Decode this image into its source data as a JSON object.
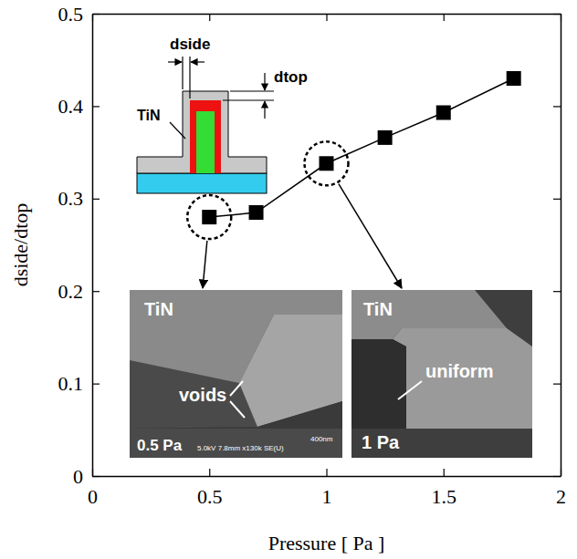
{
  "chart_data": {
    "type": "line",
    "x_label": "Pressure [ Pa ]",
    "y_label": "dside/dtop",
    "x": [
      0.5,
      0.7,
      1.0,
      1.25,
      1.5,
      1.8
    ],
    "values": [
      0.28,
      0.285,
      0.338,
      0.366,
      0.393,
      0.43
    ],
    "color": "#000000",
    "marker": "square",
    "line_style": "solid",
    "xlim": [
      0,
      2
    ],
    "ylim": [
      0,
      0.5
    ],
    "xticks": [
      0,
      0.5,
      1,
      1.5,
      2
    ],
    "yticks": [
      0,
      0.1,
      0.2,
      0.3,
      0.4,
      0.5
    ],
    "grid": false,
    "annotations": {
      "inset": [
        "dside",
        "dtop",
        "TiN"
      ],
      "sem_left": [
        "TiN",
        "voids",
        "0.5 Pa",
        "5.0kV 7.8mm x130k SE(U)",
        "400nm"
      ],
      "sem_right": [
        "TiN",
        "uniform",
        "1 Pa"
      ]
    }
  }
}
